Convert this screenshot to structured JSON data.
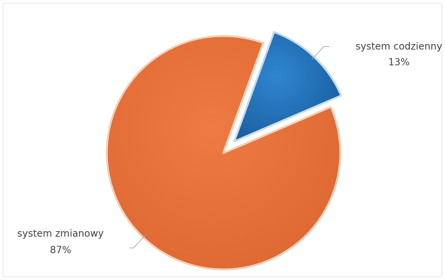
{
  "chart_data": {
    "type": "pie",
    "title": "",
    "slices": [
      {
        "label": "system codzienny",
        "value": 13,
        "value_label": "13%",
        "color": "#1f6fb8",
        "exploded": true
      },
      {
        "label": "system zmianowy",
        "value": 87,
        "value_label": "87%",
        "color": "#e8703a",
        "exploded": false
      }
    ],
    "start_angle_deg": 20,
    "legend": "none"
  }
}
